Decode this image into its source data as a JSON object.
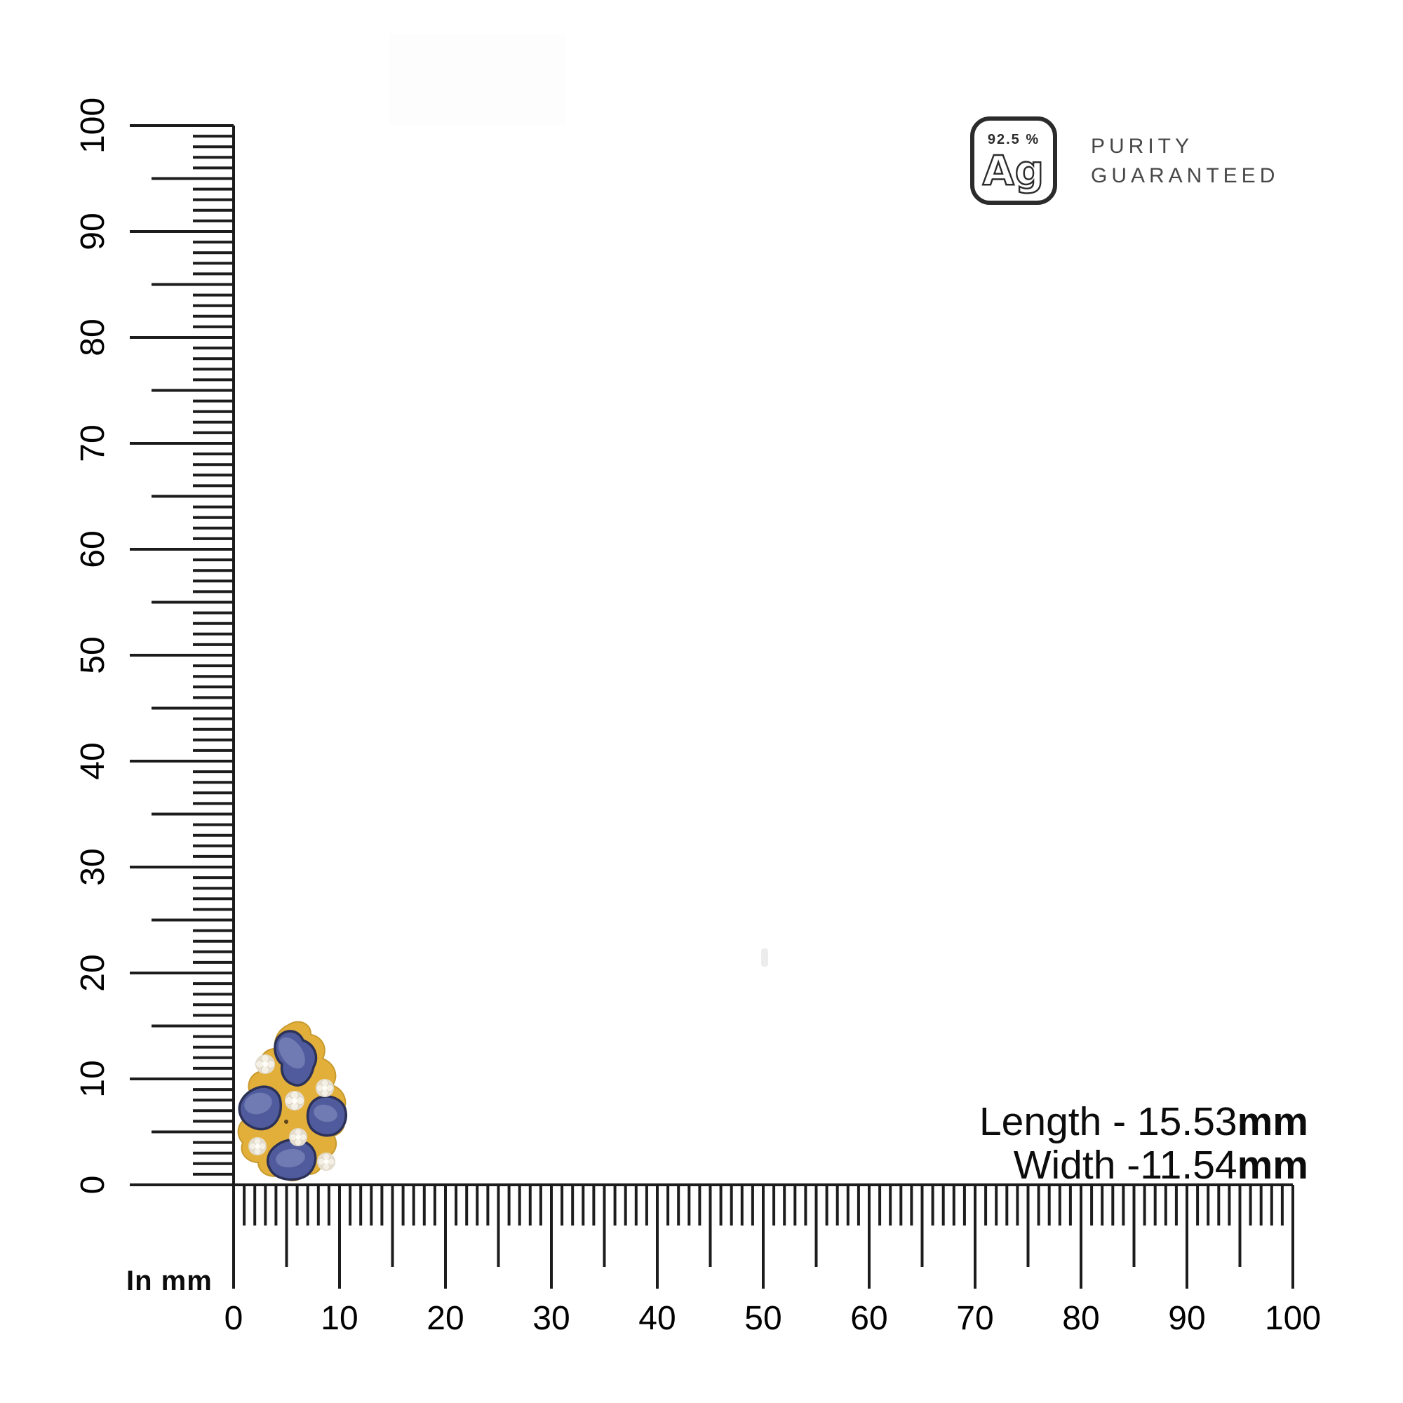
{
  "badge": {
    "purity_text": "92.5 %",
    "symbol": "Ag",
    "caption_line1": "PURITY",
    "caption_line2": "GUARANTEED"
  },
  "measurements": [
    {
      "text": "Length - 15.53",
      "unit": "mm"
    },
    {
      "text": "Width -11.54",
      "unit": "mm"
    }
  ],
  "rulers": {
    "unit_label": "In mm",
    "min": 0,
    "max": 100,
    "minor_step": 1,
    "mid_step": 5,
    "major_step": 10,
    "vertical_labels": [
      "0",
      "10",
      "20",
      "30",
      "40",
      "50",
      "60",
      "70",
      "80",
      "90",
      "100"
    ],
    "horizontal_labels": [
      "0",
      "10",
      "20",
      "30",
      "40",
      "50",
      "60",
      "70",
      "80",
      "90",
      "100"
    ],
    "line_color": "#1c1c1c",
    "label_color": "#000000"
  },
  "product": {
    "description": "gold stud earring with blue sapphire slices and small diamonds",
    "colors": {
      "ink": "#2b2b2b",
      "gold": "#e2af3a",
      "gold_dark": "#c79a2e",
      "stone": "#4f5b9c",
      "stone_hi": "#8b96c4",
      "stone_rim": "#2c3158",
      "diamond": "#f4f0e5",
      "diamond_shade": "#e5ded0"
    }
  }
}
